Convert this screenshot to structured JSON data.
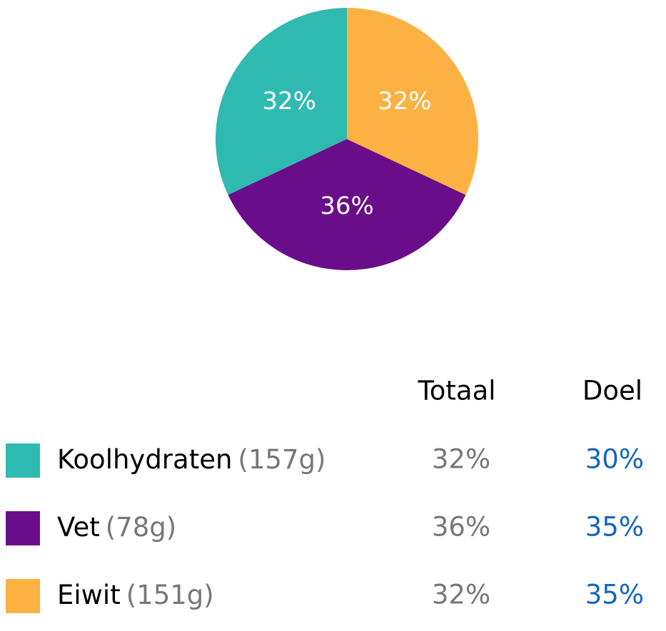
{
  "chart_data": {
    "type": "pie",
    "values": [
      32,
      36,
      32
    ],
    "value_labels": [
      "32%",
      "36%",
      "32%"
    ],
    "colors": [
      "#2ebab1",
      "#6a0d8a",
      "#fdb142"
    ],
    "start_angle": 90,
    "direction": "counterclockwise"
  },
  "table": {
    "header": [
      "Totaal",
      "Doel"
    ],
    "rows": [
      {
        "name": "Koolhydraten",
        "amount": "(157g)",
        "total": "32%",
        "goal": "30%"
      },
      {
        "name": "Vet",
        "amount": "(78g)",
        "total": "36%",
        "goal": "35%"
      },
      {
        "name": "Eiwit",
        "amount": "(151g)",
        "total": "32%",
        "goal": "35%"
      }
    ]
  }
}
